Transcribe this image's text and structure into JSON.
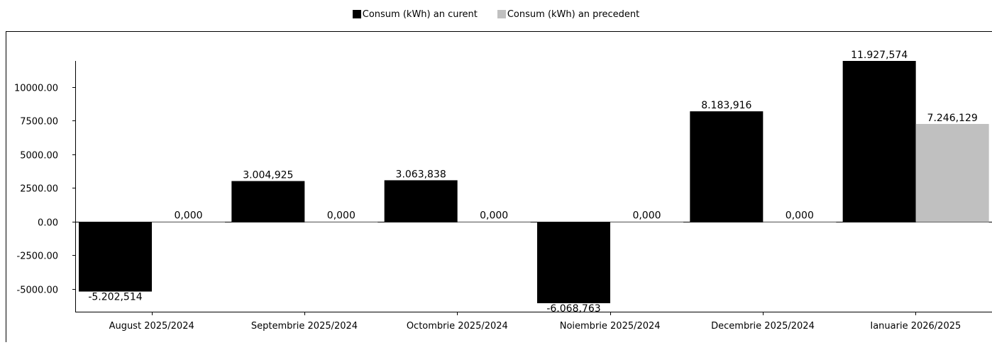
{
  "chart_data": {
    "type": "bar",
    "title": "",
    "xlabel": "",
    "ylabel": "",
    "categories": [
      "August 2025/2024",
      "Septembrie 2025/2024",
      "Octombrie 2025/2024",
      "Noiembrie 2025/2024",
      "Decembrie 2025/2024",
      "Ianuarie 2026/2025"
    ],
    "series": [
      {
        "name": "Consum (kWh) an curent",
        "color": "#000000",
        "values": [
          -5202.514,
          3004.925,
          3063.838,
          -6068.763,
          8183.916,
          11927.574
        ],
        "labels": [
          "-5.202,514",
          "3.004,925",
          "3.063,838",
          "-6.068,763",
          "8.183,916",
          "11.927,574"
        ]
      },
      {
        "name": "Consum (kWh) an precedent",
        "color": "#c0c0c0",
        "values": [
          0,
          0,
          0,
          0,
          0,
          7246.129
        ],
        "labels": [
          "0,000",
          "0,000",
          "0,000",
          "0,000",
          "0,000",
          "7.246,129"
        ]
      }
    ],
    "ylim": [
      -6700,
      11927.574
    ],
    "yticks": [
      -5000,
      -2500,
      0,
      2500,
      5000,
      7500,
      10000
    ],
    "ytick_labels": [
      "-5000.00",
      "-2500.00",
      "0.00",
      "2500.00",
      "5000.00",
      "7500.00",
      "10000.00"
    ],
    "grid": false,
    "legend_position": "top-center"
  }
}
